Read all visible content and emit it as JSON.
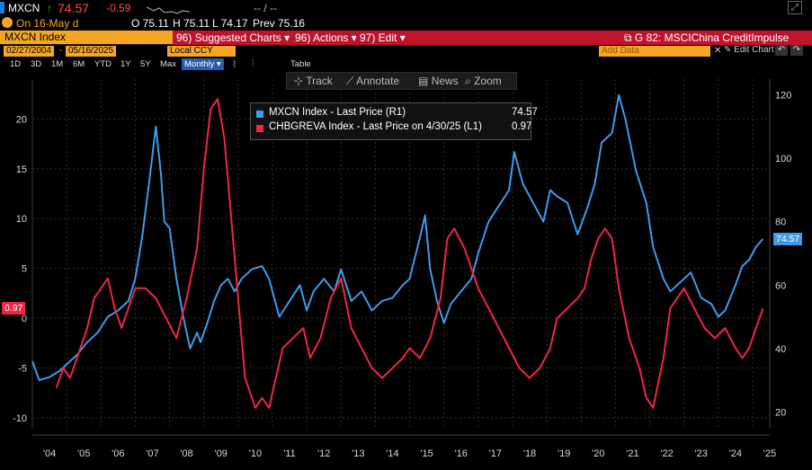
{
  "ticker": {
    "symbol": "MXCN",
    "arrow": "↑",
    "price": "74.57",
    "change": "-0.59",
    "sparkline_label": "-- / --",
    "on_label": "On 16-May d",
    "open": "O 75.11",
    "high": "H 75.11",
    "low": "L 74.17",
    "prev": "Prev 75.16"
  },
  "menu": {
    "security": "MXCN Index",
    "suggested": "96) Suggested Charts ▾",
    "actions": "96) Actions ▾",
    "edit": "97) Edit ▾",
    "chart_title": "G 82: MSCIChina CreditImpulse"
  },
  "controls": {
    "start_date": "02/27/2004",
    "end_date": "05/16/2025",
    "currency": "Local CCY",
    "add_data_placeholder": "Add Data",
    "edit_chart": "Edit Chart",
    "ranges": [
      "1D",
      "3D",
      "1M",
      "6M",
      "YTD",
      "1Y",
      "5Y",
      "Max"
    ],
    "frequency": "Monthly ▾",
    "table_label": "Table"
  },
  "toolbar": {
    "track": "Track",
    "annotate": "Annotate",
    "news": "News",
    "zoom": "Zoom"
  },
  "legend": {
    "row1_label": "MXCN Index - Last Price (R1)",
    "row1_value": "74.57",
    "row2_label": "CHBGREVA Index - Last Price on 4/30/25 (L1)",
    "row2_value": "0.97"
  },
  "badges": {
    "left_last": "0.97",
    "right_last": "74.57"
  },
  "colors": {
    "mxcn": "#3f9be9",
    "credit": "#ef2546",
    "grid": "#2f2f2f",
    "axis_text": "#d8d8d8"
  },
  "chart_data": {
    "type": "line",
    "title": "G 82: MSCIChina CreditImpulse",
    "x_range": [
      2004.0,
      2025.5
    ],
    "x_tick_labels": [
      "'04",
      "'05",
      "'06",
      "'07",
      "'08",
      "'09",
      "'10",
      "'11",
      "'12",
      "'13",
      "'14",
      "'15",
      "'16",
      "'17",
      "'18",
      "'19",
      "'20",
      "'21",
      "'22",
      "'23",
      "'24",
      "'25"
    ],
    "left_axis": {
      "ylim": [
        -11,
        24
      ],
      "ticks": [
        -10,
        -5,
        0,
        5,
        10,
        15,
        20
      ]
    },
    "right_axis": {
      "ylim": [
        15,
        125
      ],
      "ticks": [
        20,
        40,
        60,
        80,
        100,
        120
      ]
    },
    "series": [
      {
        "name": "MXCN Index - Last Price (R1)",
        "axis": "right",
        "x": [
          2004.0,
          2004.2,
          2004.5,
          2004.8,
          2005.0,
          2005.3,
          2005.6,
          2005.9,
          2006.2,
          2006.5,
          2006.8,
          2007.0,
          2007.2,
          2007.4,
          2007.6,
          2007.75,
          2007.85,
          2008.0,
          2008.2,
          2008.4,
          2008.6,
          2008.8,
          2008.9,
          2009.1,
          2009.3,
          2009.5,
          2009.7,
          2009.9,
          2010.1,
          2010.4,
          2010.7,
          2010.9,
          2011.2,
          2011.5,
          2011.8,
          2012.0,
          2012.2,
          2012.5,
          2012.8,
          2013.0,
          2013.3,
          2013.6,
          2013.9,
          2014.2,
          2014.5,
          2014.8,
          2015.0,
          2015.3,
          2015.45,
          2015.6,
          2015.8,
          2016.0,
          2016.2,
          2016.5,
          2016.8,
          2017.0,
          2017.3,
          2017.6,
          2017.9,
          2018.05,
          2018.3,
          2018.6,
          2018.9,
          2019.1,
          2019.3,
          2019.6,
          2019.9,
          2020.2,
          2020.4,
          2020.6,
          2020.9,
          2021.1,
          2021.3,
          2021.6,
          2021.9,
          2022.1,
          2022.4,
          2022.6,
          2022.8,
          2023.0,
          2023.2,
          2023.5,
          2023.8,
          2024.0,
          2024.2,
          2024.5,
          2024.7,
          2024.9,
          2025.1,
          2025.3
        ],
        "values": [
          36,
          30,
          31,
          33,
          35,
          38,
          42,
          45,
          50,
          52,
          55,
          62,
          75,
          92,
          110,
          95,
          80,
          78,
          62,
          50,
          40,
          45,
          42,
          48,
          55,
          60,
          62,
          58,
          62,
          65,
          66,
          62,
          50,
          55,
          60,
          52,
          58,
          62,
          58,
          65,
          55,
          58,
          52,
          55,
          56,
          60,
          62,
          75,
          82,
          65,
          55,
          48,
          54,
          58,
          62,
          70,
          80,
          85,
          90,
          102,
          92,
          86,
          80,
          90,
          88,
          86,
          76,
          85,
          92,
          105,
          108,
          120,
          112,
          96,
          86,
          72,
          62,
          58,
          60,
          62,
          64,
          56,
          54,
          50,
          52,
          60,
          66,
          68,
          72,
          74.57
        ]
      },
      {
        "name": "CHBGREVA Index - Last Price on 4/30/25 (L1)",
        "axis": "left",
        "x": [
          2004.7,
          2004.9,
          2005.1,
          2005.3,
          2005.6,
          2005.8,
          2006.0,
          2006.2,
          2006.4,
          2006.6,
          2006.8,
          2007.0,
          2007.3,
          2007.6,
          2007.9,
          2008.2,
          2008.5,
          2008.8,
          2009.0,
          2009.2,
          2009.4,
          2009.6,
          2009.8,
          2010.0,
          2010.2,
          2010.5,
          2010.7,
          2010.9,
          2011.1,
          2011.3,
          2011.6,
          2011.9,
          2012.1,
          2012.4,
          2012.7,
          2013.0,
          2013.3,
          2013.6,
          2013.9,
          2014.2,
          2014.5,
          2014.8,
          2015.0,
          2015.3,
          2015.6,
          2015.9,
          2016.1,
          2016.3,
          2016.6,
          2016.8,
          2017.0,
          2017.3,
          2017.6,
          2017.9,
          2018.2,
          2018.5,
          2018.8,
          2019.1,
          2019.3,
          2019.6,
          2019.9,
          2020.1,
          2020.3,
          2020.5,
          2020.7,
          2020.9,
          2021.1,
          2021.4,
          2021.7,
          2021.9,
          2022.1,
          2022.4,
          2022.6,
          2022.8,
          2023.0,
          2023.3,
          2023.6,
          2023.9,
          2024.2,
          2024.5,
          2024.7,
          2024.9,
          2025.1,
          2025.3
        ],
        "values": [
          -7,
          -5,
          -6,
          -4,
          -1,
          2,
          3,
          4,
          1,
          -1,
          1,
          3,
          3,
          2,
          0,
          -2,
          2,
          7,
          15,
          21,
          22,
          18,
          10,
          2,
          -6,
          -9,
          -8,
          -9,
          -6,
          -3,
          -2,
          -1,
          -4,
          -2,
          2,
          4,
          -1,
          -3,
          -5,
          -6,
          -5,
          -4,
          -3,
          -4,
          -2,
          2,
          8,
          9,
          7,
          5,
          3,
          1,
          -1,
          -3,
          -5,
          -6,
          -5,
          -3,
          0,
          1,
          2,
          3,
          6,
          8,
          9,
          8,
          3,
          -2,
          -5,
          -8,
          -9,
          -4,
          1,
          2,
          3,
          1,
          -1,
          -2,
          -1,
          -3,
          -4,
          -3,
          -1,
          0.97
        ]
      }
    ]
  }
}
